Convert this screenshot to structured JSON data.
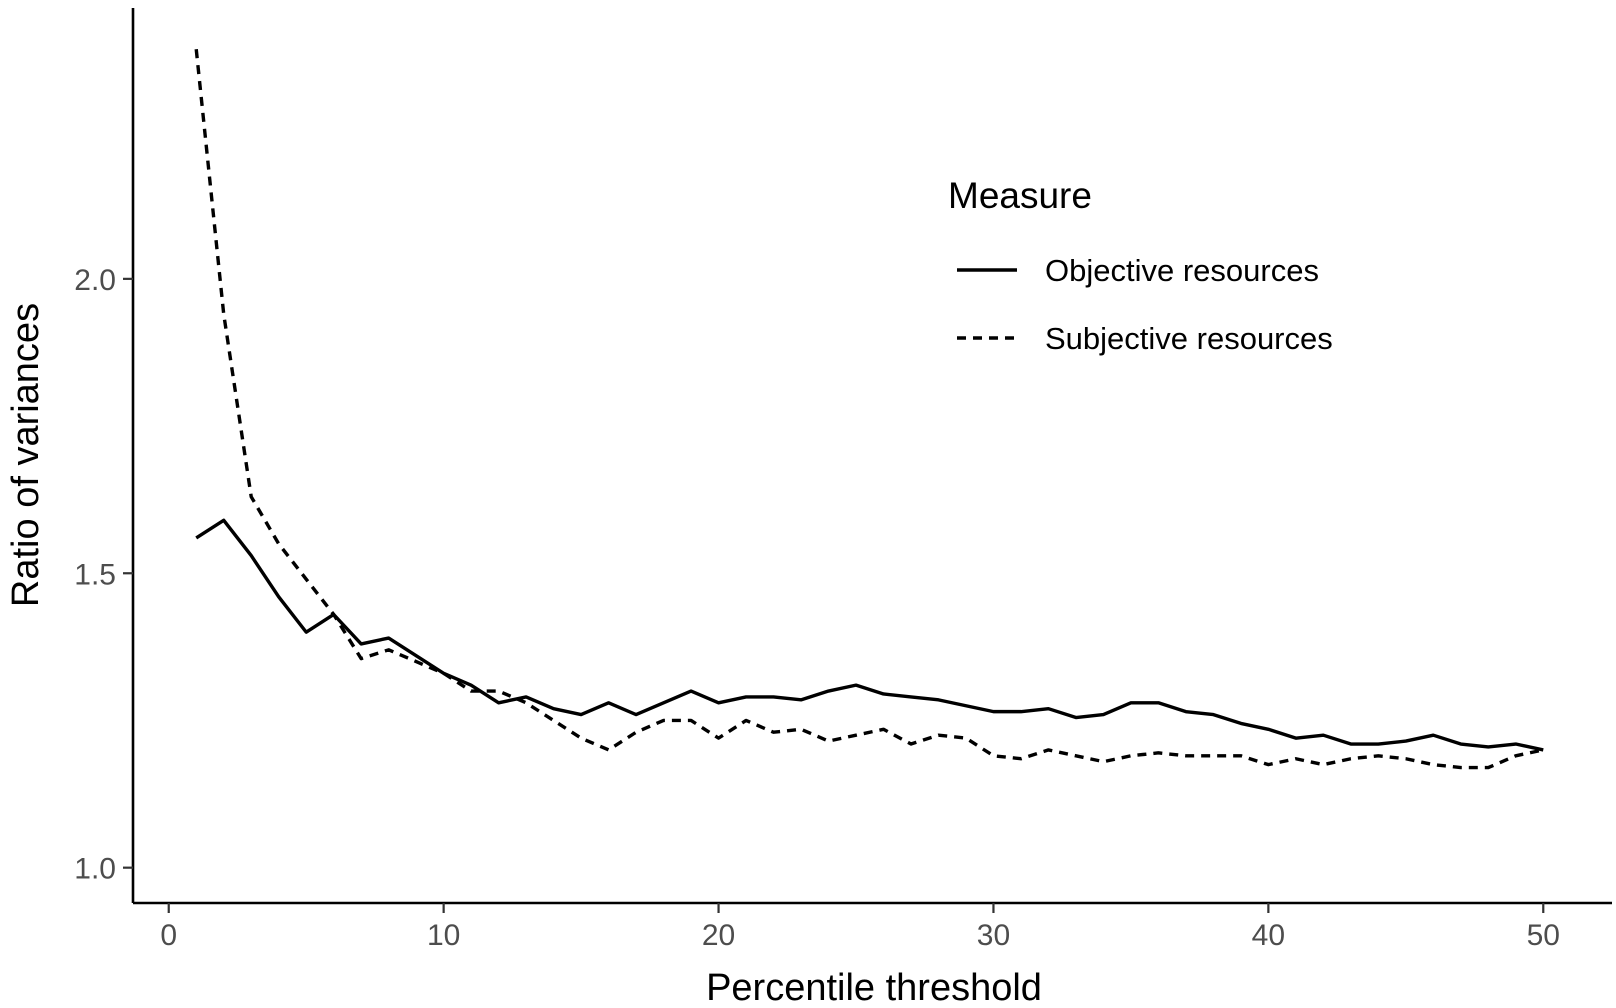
{
  "chart_data": {
    "type": "line",
    "title": "",
    "xlabel": "Percentile threshold",
    "ylabel": "Ratio of variances",
    "xlim": [
      -1.3,
      52.5
    ],
    "ylim": [
      0.94,
      2.46
    ],
    "x_ticks": [
      0,
      10,
      20,
      30,
      40,
      50
    ],
    "x_tick_labels": [
      "0",
      "10",
      "20",
      "30",
      "40",
      "50"
    ],
    "y_ticks": [
      1.0,
      1.5,
      2.0
    ],
    "y_tick_labels": [
      "1.0",
      "1.5",
      "2.0"
    ],
    "grid": false,
    "legend": {
      "title": "Measure",
      "position": "top-right"
    },
    "x": [
      1,
      2,
      3,
      4,
      5,
      6,
      7,
      8,
      9,
      10,
      11,
      12,
      13,
      14,
      15,
      16,
      17,
      18,
      19,
      20,
      21,
      22,
      23,
      24,
      25,
      26,
      27,
      28,
      29,
      30,
      31,
      32,
      33,
      34,
      35,
      36,
      37,
      38,
      39,
      40,
      41,
      42,
      43,
      44,
      45,
      46,
      47,
      48,
      49,
      50
    ],
    "series": [
      {
        "name": "Objective resources",
        "dash": "solid",
        "color": "#000000",
        "values": [
          1.56,
          1.59,
          1.53,
          1.46,
          1.4,
          1.43,
          1.38,
          1.39,
          1.36,
          1.33,
          1.31,
          1.28,
          1.29,
          1.27,
          1.26,
          1.28,
          1.26,
          1.28,
          1.3,
          1.28,
          1.29,
          1.29,
          1.285,
          1.3,
          1.31,
          1.295,
          1.29,
          1.285,
          1.275,
          1.265,
          1.265,
          1.27,
          1.255,
          1.26,
          1.28,
          1.28,
          1.265,
          1.26,
          1.245,
          1.235,
          1.22,
          1.225,
          1.21,
          1.21,
          1.215,
          1.225,
          1.21,
          1.205,
          1.21,
          1.2
        ]
      },
      {
        "name": "Subjective resources",
        "dash": "dashed",
        "color": "#000000",
        "values": [
          2.39,
          1.94,
          1.63,
          1.55,
          1.49,
          1.43,
          1.355,
          1.37,
          1.35,
          1.33,
          1.3,
          1.3,
          1.28,
          1.25,
          1.22,
          1.2,
          1.23,
          1.25,
          1.25,
          1.22,
          1.25,
          1.23,
          1.235,
          1.215,
          1.225,
          1.235,
          1.21,
          1.225,
          1.22,
          1.19,
          1.185,
          1.2,
          1.19,
          1.18,
          1.19,
          1.195,
          1.19,
          1.19,
          1.19,
          1.175,
          1.185,
          1.175,
          1.185,
          1.19,
          1.185,
          1.175,
          1.17,
          1.17,
          1.19,
          1.2
        ]
      }
    ]
  }
}
